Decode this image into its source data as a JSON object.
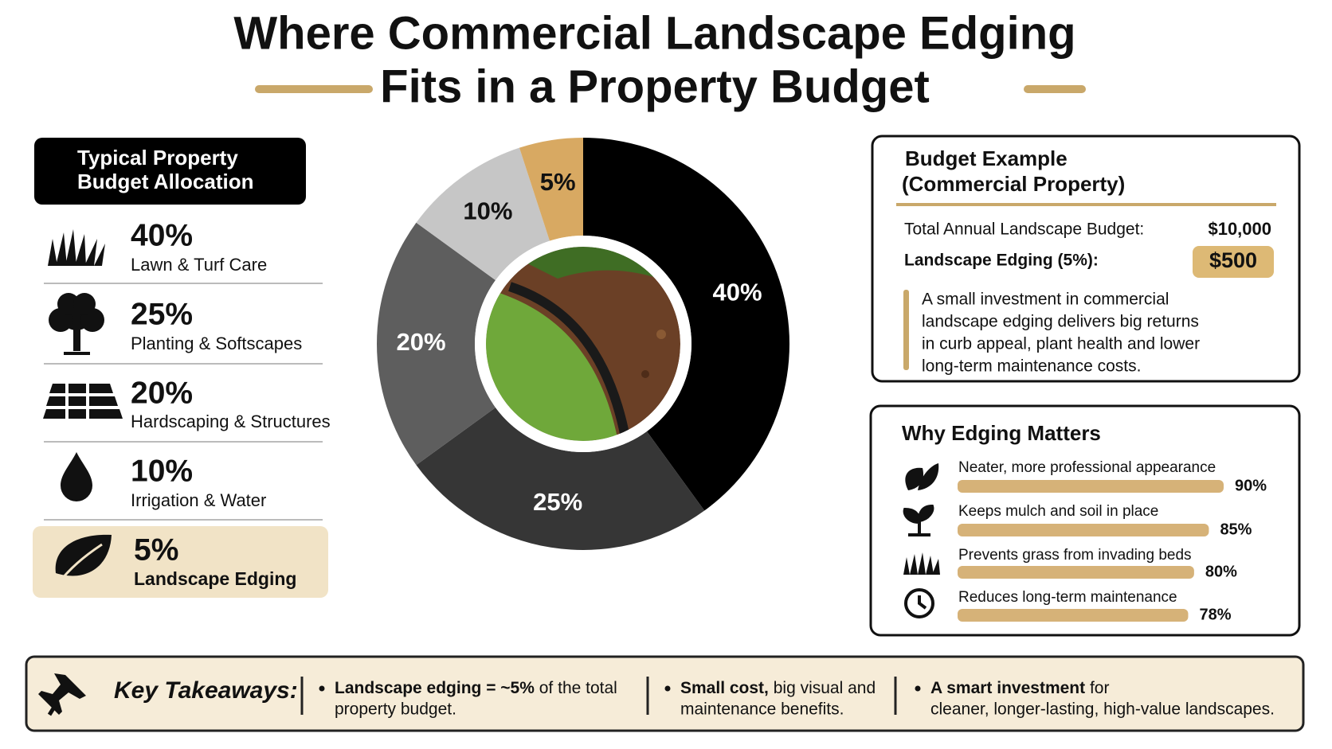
{
  "title": {
    "line1": "Where Commercial Landscape Edging",
    "line2": "Fits in a Property Budget"
  },
  "allocation": {
    "heading_line1": "Typical Property",
    "heading_line2": "Budget Allocation"
  },
  "chart_data": [
    {
      "type": "pie",
      "categories": [
        "Lawn & Turf Care",
        "Planting & Softscapes",
        "Hardscaping & Structures",
        "Irrigation & Water",
        "Landscape Edging"
      ],
      "values": [
        40,
        25,
        20,
        10,
        5
      ],
      "value_labels": [
        "40%",
        "25%",
        "20%",
        "10%",
        "5%"
      ],
      "colors": [
        "#000000",
        "#363636",
        "#5e5e5e",
        "#c6c6c6",
        "#d8a962"
      ]
    },
    {
      "type": "bar",
      "title": "Why Edging Matters",
      "categories": [
        "Neater, more professional appearance",
        "Keeps mulch and soil in place",
        "Prevents grass from invading beds",
        "Reduces long-term maintenance"
      ],
      "values": [
        90,
        85,
        80,
        78
      ],
      "value_labels": [
        "90%",
        "85%",
        "80%",
        "78%"
      ],
      "color": "#d6b278"
    }
  ],
  "budget_example": {
    "title_line1": "Budget Example",
    "title_line2": "(Commercial Property)",
    "total_label": "Total Annual Landscape Budget:",
    "total_value": "$10,000",
    "edging_label": "Landscape Edging (5%):",
    "edging_value": "$500",
    "note_lines": [
      "A small investment in commercial",
      "landscape edging delivers big returns",
      "in curb appeal, plant health and lower",
      "long-term maintenance costs."
    ]
  },
  "takeaways": {
    "heading": "Key Takeaways:",
    "items": [
      {
        "bold": "Landscape edging = ~5%",
        "rest": " of the total",
        "line2": "property budget."
      },
      {
        "bold": "Small cost,",
        "rest": " big visual and",
        "line2": "maintenance benefits."
      },
      {
        "bold": "A smart investment",
        "rest": " for",
        "line2": "cleaner, longer-lasting, high-value landscapes."
      }
    ]
  }
}
